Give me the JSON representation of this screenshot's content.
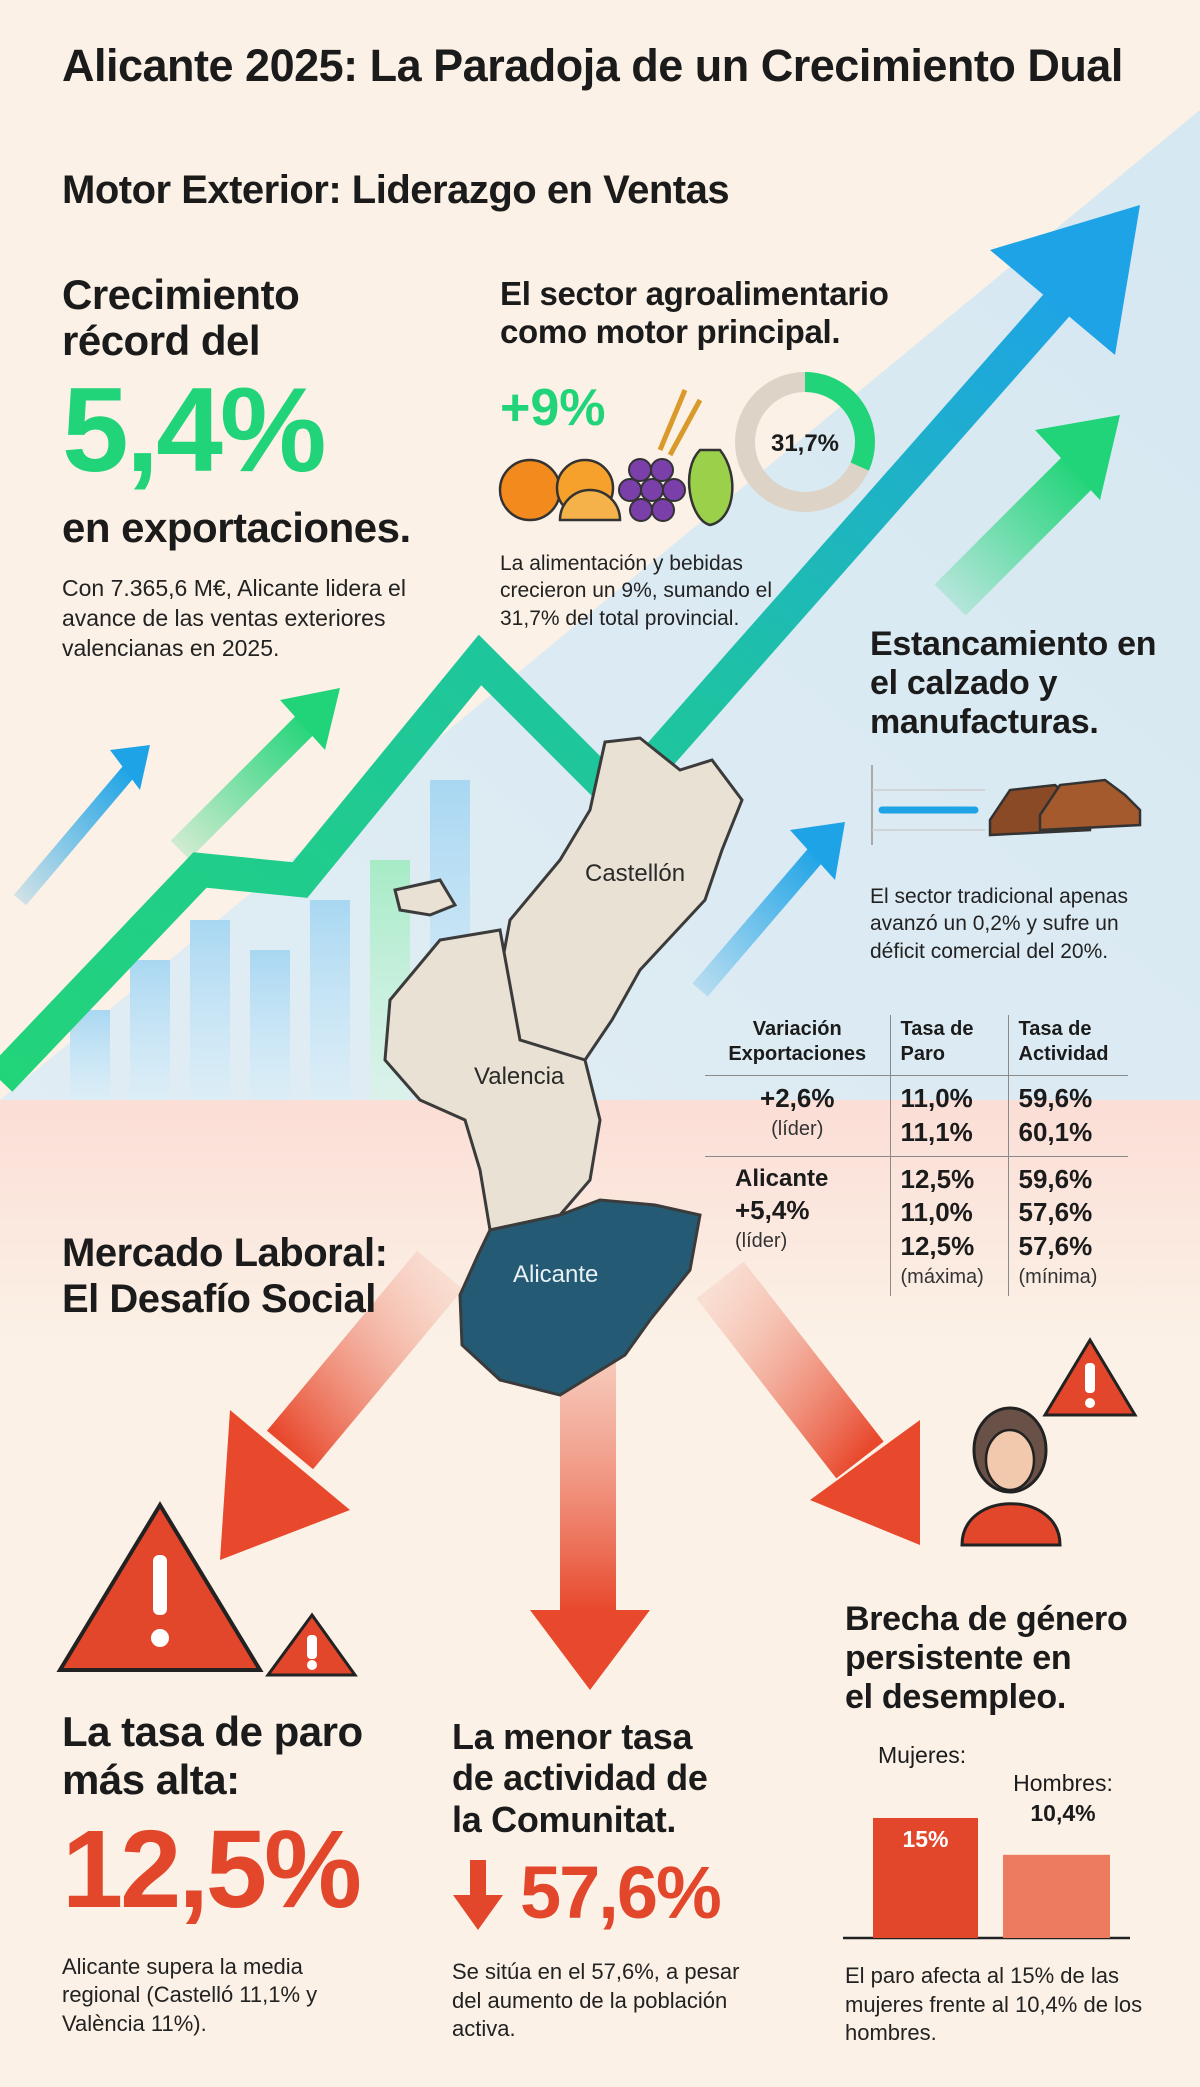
{
  "title": "Alicante 2025: La Paradoja de un Crecimiento Dual",
  "exterior": {
    "heading": "Motor Exterior: Liderazgo en Ventas",
    "growth": {
      "line1": "Crecimiento",
      "line2": "récord del",
      "value": "5,4%",
      "line3": "en exportaciones.",
      "desc": "Con 7.365,6 M€, Alicante lidera el avance de las ventas exteriores valencianas en 2025."
    },
    "agro": {
      "heading": "El sector agroalimentario como motor principal.",
      "pct": "+9%",
      "donut_value": "31,7%",
      "donut_fraction": 0.317,
      "desc": "La alimentación y bebidas crecieron un 9%, sumando el 31,7% del total provincial."
    },
    "footwear": {
      "heading": "Estancamiento en el calzado y manufacturas.",
      "desc": "El sector tradicional apenas avanzó un 0,2% y sufre un déficit comercial del 20%."
    }
  },
  "map": {
    "regions": [
      "Castellón",
      "Valencia",
      "Alicante"
    ]
  },
  "table": {
    "headers": [
      "Variación Exportaciones",
      "Tasa de Paro",
      "Tasa de Actividad"
    ],
    "row1": {
      "c1": [
        "+2,6%",
        "(líder)"
      ],
      "c2": [
        "11,0%",
        "11,1%"
      ],
      "c3": [
        "59,6%",
        "60,1%"
      ]
    },
    "row2": {
      "c1": [
        "Alicante",
        "+5,4%",
        "(líder)"
      ],
      "c2": [
        "12,5%",
        "11,0%",
        "12,5%",
        "(máxima)"
      ],
      "c3": [
        "59,6%",
        "57,6%",
        "57,6%",
        "(mínima)"
      ]
    }
  },
  "labor": {
    "heading_line1": "Mercado Laboral:",
    "heading_line2": "El Desafío Social",
    "paro": {
      "heading_line1": "La tasa de paro",
      "heading_line2": "más alta:",
      "value": "12,5%",
      "desc": "Alicante supera la media regional (Castelló 11,1% y València 11%)."
    },
    "actividad": {
      "heading_line1": "La menor tasa",
      "heading_line2": "de actividad de",
      "heading_line3": "la Comunitat.",
      "value": "57,6%",
      "desc": "Se sitúa en el 57,6%, a pesar del aumento de la población activa."
    },
    "genero": {
      "heading_line1": "Brecha de género",
      "heading_line2": "persistente en",
      "heading_line3": "el desempleo.",
      "women_label": "Mujeres:",
      "women_value": "15%",
      "women_num": 15,
      "men_label": "Hombres:",
      "men_value": "10,4%",
      "men_num": 10.4,
      "desc": "El paro afecta al 15% de las mujeres frente al 10,4% de los hombres."
    }
  },
  "colors": {
    "green": "#22d479",
    "blue": "#1ea3e6",
    "red": "#e2472c",
    "map_alicante": "#245a73",
    "map_other": "#e9e1d3"
  }
}
